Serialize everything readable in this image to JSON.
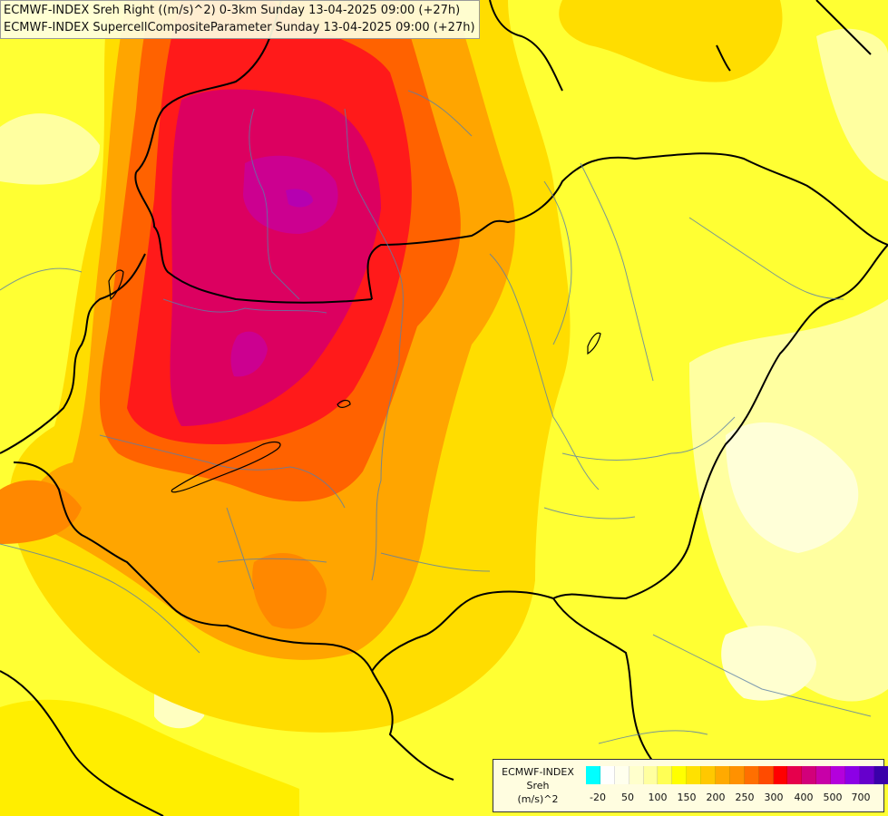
{
  "header": {
    "line1": "ECMWF-INDEX Sreh Right ((m/s)^2) 0-3km Sunday 13-04-2025 09:00 (+27h)",
    "line2": "ECMWF-INDEX SupercellCompositeParameter Sunday 13-04-2025 09:00 (+27h)"
  },
  "legend": {
    "source": "ECMWF-INDEX",
    "variable": "Sreh",
    "unit": "(m/s)^2",
    "colors": [
      "#00ffff",
      "#ffffff",
      "#ffffee",
      "#ffffcc",
      "#ffffa0",
      "#ffff55",
      "#ffff00",
      "#ffe100",
      "#ffc800",
      "#ffaa00",
      "#ff9100",
      "#ff6f00",
      "#ff4b00",
      "#ff0000",
      "#e6004c",
      "#d2007a",
      "#c800a8",
      "#b400dc",
      "#8c00e6",
      "#6600cc",
      "#3a00aa",
      "#0a0078"
    ],
    "ticks": [
      "-20",
      "50",
      "100",
      "150",
      "200",
      "250",
      "300",
      "400",
      "500",
      "700"
    ]
  },
  "map": {
    "field_colors": {
      "background": "#ffff66",
      "pale": "#ffffa8",
      "yellow": "#ffee00",
      "gold": "#ffcc00",
      "orange": "#ff9a00",
      "red_orange": "#ff5a00",
      "red": "#ff1010",
      "magenta": "#d6006a",
      "purple": "#c000a6",
      "border": "#000000",
      "river": "#6688aa"
    }
  }
}
